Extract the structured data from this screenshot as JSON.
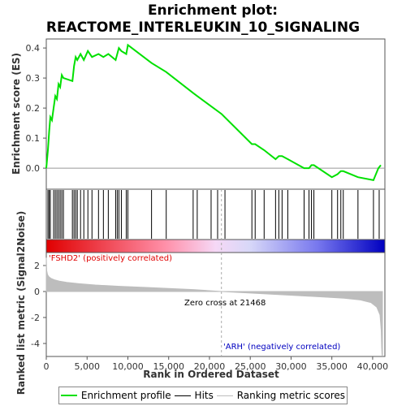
{
  "title_line1": "Enrichment plot:",
  "title_line2": "REACTOME_INTERLEUKIN_10_SIGNALING",
  "chart_data": [
    {
      "type": "line",
      "name": "enrichment-profile",
      "ylabel": "Enrichment score (ES)",
      "xlim": [
        0,
        41500
      ],
      "ylim": [
        -0.07,
        0.43
      ],
      "yticks": [
        0.0,
        0.1,
        0.2,
        0.3,
        0.4
      ],
      "ytick_labels": [
        "0.0",
        "0.1",
        "0.2",
        "0.3",
        "0.4"
      ],
      "x": [
        0,
        200,
        350,
        500,
        700,
        900,
        1100,
        1300,
        1500,
        1700,
        1900,
        2100,
        3200,
        3400,
        3600,
        3800,
        4200,
        4600,
        5100,
        5600,
        6400,
        7000,
        7600,
        8500,
        8700,
        8900,
        9200,
        9800,
        10000,
        12900,
        14700,
        18000,
        18500,
        21500,
        25200,
        25600,
        26700,
        28100,
        28500,
        28900,
        29600,
        31600,
        32200,
        32500,
        32800,
        35000,
        35700,
        36100,
        36400,
        38200,
        40100,
        40700,
        41000
      ],
      "y": [
        0.0,
        0.06,
        0.12,
        0.17,
        0.16,
        0.2,
        0.24,
        0.23,
        0.28,
        0.27,
        0.31,
        0.3,
        0.29,
        0.34,
        0.37,
        0.36,
        0.38,
        0.36,
        0.39,
        0.37,
        0.38,
        0.37,
        0.38,
        0.36,
        0.38,
        0.4,
        0.39,
        0.38,
        0.41,
        0.35,
        0.32,
        0.25,
        0.24,
        0.18,
        0.08,
        0.08,
        0.06,
        0.03,
        0.04,
        0.04,
        0.03,
        0.0,
        0.0,
        0.01,
        0.01,
        -0.03,
        -0.02,
        -0.01,
        -0.01,
        -0.03,
        -0.04,
        0.0,
        0.01
      ],
      "color": "#00e000",
      "zero_line": true
    },
    {
      "type": "hits",
      "name": "hits",
      "positions": [
        200,
        350,
        500,
        900,
        1100,
        1300,
        1500,
        1700,
        1900,
        2100,
        3200,
        3400,
        3600,
        3800,
        4200,
        4600,
        5100,
        5600,
        6400,
        7000,
        7600,
        8500,
        8700,
        8900,
        9200,
        9800,
        10000,
        12900,
        14700,
        18000,
        18500,
        20200,
        21000,
        21900,
        25200,
        25600,
        26700,
        28100,
        28500,
        28900,
        29600,
        31600,
        32200,
        32500,
        32800,
        35000,
        35700,
        36100,
        36400,
        38200,
        40100,
        40800
      ],
      "color_gradient": [
        "#e00000",
        "#ff9fb0",
        "#f5d8f5",
        "#d0d0f8",
        "#8888f0",
        "#0000c0"
      ]
    },
    {
      "type": "area",
      "name": "ranked-list-metric",
      "ylabel": "Ranked list metric (Signal2Noise)",
      "xlabel": "Rank in Ordered Dataset",
      "xlim": [
        0,
        41500
      ],
      "ylim": [
        -5,
        3
      ],
      "yticks": [
        -4,
        -2,
        0,
        2
      ],
      "xticks": [
        0,
        5000,
        10000,
        15000,
        20000,
        25000,
        30000,
        35000,
        40000
      ],
      "xtick_labels": [
        "0",
        "5,000",
        "10,000",
        "15,000",
        "20,000",
        "25,000",
        "30,000",
        "35,000",
        "40,000"
      ],
      "x": [
        0,
        50,
        150,
        300,
        600,
        1000,
        1600,
        2500,
        4000,
        6000,
        9000,
        12000,
        15000,
        18000,
        21468,
        25000,
        28000,
        31000,
        34000,
        36500,
        38500,
        39800,
        40500,
        40900,
        41050,
        41100,
        41150,
        41200
      ],
      "y": [
        2.6,
        1.6,
        1.3,
        1.15,
        1.0,
        0.9,
        0.8,
        0.7,
        0.6,
        0.5,
        0.4,
        0.32,
        0.24,
        0.15,
        0.0,
        -0.12,
        -0.22,
        -0.32,
        -0.42,
        -0.52,
        -0.65,
        -0.85,
        -1.2,
        -1.8,
        -3.0,
        -4.2,
        -4.9,
        -4.9
      ],
      "fill": "#bdbdbd",
      "zero_cross": 21468
    }
  ],
  "annotations": {
    "positive": "'FSHD2' (positively correlated)",
    "negative": "'ARH' (negatively correlated)",
    "zero_cross": "Zero cross at 21468"
  },
  "legend": {
    "items": [
      {
        "label": "Enrichment profile",
        "color": "#00e000"
      },
      {
        "label": "Hits",
        "color": "#000000"
      },
      {
        "label": "Ranking metric scores",
        "color": "#bdbdbd"
      }
    ]
  },
  "colors": {
    "positive_text": "#e00000",
    "negative_text": "#0000c0",
    "zero_cross_line": "#aaaaaa"
  }
}
